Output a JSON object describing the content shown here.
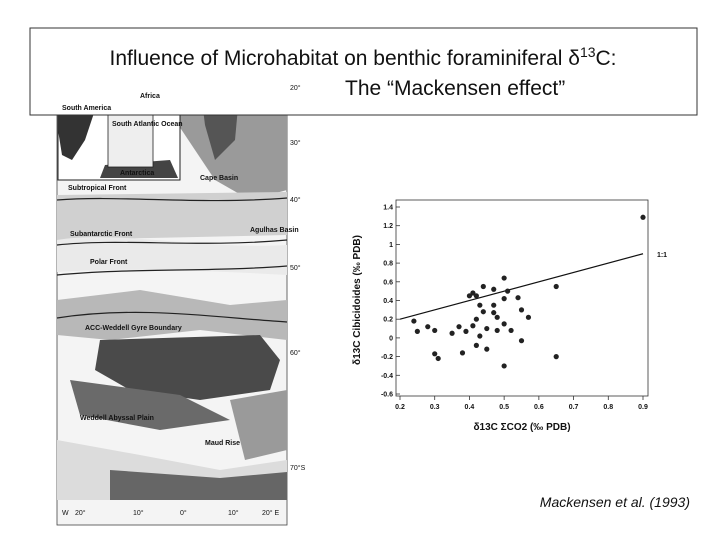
{
  "title": {
    "line1": "Influence of Microhabitat on benthic foraminiferal δ",
    "line1_sup": "13",
    "line1_end": "C:",
    "line2": "The “Mackensen effect”"
  },
  "citation": "Mackensen et al. (1993)",
  "map": {
    "labels": [
      "Africa",
      "South America",
      "South Atlantic Ocean",
      "Antarctica",
      "Subtropical Front",
      "Subantarctic Front",
      "Polar Front",
      "ACC-Weddell Gyre Boundary",
      "Weddell Abyssal Plain",
      "Cape Basin",
      "Agulhas Basin",
      "Maud Rise"
    ],
    "lat_labels": [
      "20°",
      "30°",
      "40°",
      "50°",
      "60°",
      "70°S"
    ],
    "lon_labels": [
      "W",
      "20°",
      "10°",
      "0°",
      "10°",
      "20° E"
    ]
  },
  "chart_data": {
    "type": "scatter",
    "xlabel": "δ13C ΣCO2 (‰ PDB)",
    "ylabel": "δ13C Cibicidoides (‰ PDB)",
    "x": [
      0.24,
      0.25,
      0.28,
      0.3,
      0.3,
      0.31,
      0.35,
      0.37,
      0.38,
      0.39,
      0.4,
      0.41,
      0.41,
      0.42,
      0.42,
      0.43,
      0.44,
      0.44,
      0.45,
      0.45,
      0.47,
      0.47,
      0.47,
      0.48,
      0.48,
      0.5,
      0.5,
      0.51,
      0.5,
      0.52,
      0.5,
      0.54,
      0.55,
      0.55,
      0.57,
      0.65,
      0.65,
      0.9,
      0.42,
      0.43
    ],
    "values": [
      0.18,
      0.07,
      0.12,
      0.08,
      -0.17,
      -0.22,
      0.05,
      0.12,
      -0.16,
      0.07,
      0.45,
      0.48,
      0.13,
      0.2,
      -0.08,
      0.35,
      0.55,
      0.28,
      0.1,
      -0.12,
      0.52,
      0.35,
      0.27,
      0.22,
      0.08,
      0.64,
      0.42,
      0.5,
      0.15,
      0.08,
      -0.3,
      0.43,
      0.3,
      -0.03,
      0.22,
      0.55,
      -0.2,
      1.29,
      0.45,
      0.02
    ],
    "color": "#222222",
    "reference_line": {
      "label": "1:1",
      "x": [
        0.2,
        0.9
      ],
      "y": [
        0.2,
        0.9
      ]
    },
    "xlim": [
      0.2,
      0.9
    ],
    "xticks": [
      0.2,
      0.3,
      0.4,
      0.5,
      0.6,
      0.7,
      0.8,
      0.9
    ],
    "ylim": [
      -0.6,
      1.4
    ],
    "yticks": [
      -0.6,
      -0.4,
      -0.2,
      0,
      0.2,
      0.4,
      0.6,
      0.8,
      1,
      1.2,
      1.4
    ]
  }
}
